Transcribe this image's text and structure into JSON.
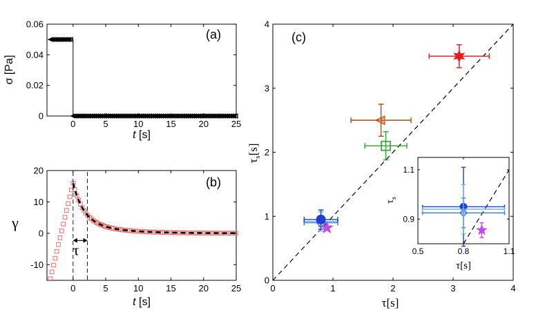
{
  "colors": {
    "axis": "#000000",
    "red": "#e41a1c",
    "red_marker": "#f06a6a",
    "orange_brown": "#b5470b",
    "orange": "#e07020",
    "green": "#2ca02c",
    "blue_dark": "#1f3fd0",
    "blue_mid": "#3a78e0",
    "blue_light": "#6ab4f0",
    "purple": "#c04be8",
    "black": "#000000"
  },
  "chart_data": [
    {
      "id": "a",
      "type": "line",
      "panel_label": "(a)",
      "xlabel_italic": "t",
      "xlabel_rest": " [s]",
      "ylabel": "σ [Pa]",
      "xlim": [
        -4,
        25
      ],
      "ylim": [
        0,
        0.06
      ],
      "xticks": [
        "0",
        "5",
        "10",
        "15",
        "20",
        "25"
      ],
      "xtick_values": [
        0,
        5,
        10,
        15,
        20,
        25
      ],
      "yticks": [
        "0",
        "0.02",
        "0.04",
        "0.06"
      ],
      "ytick_values": [
        0,
        0.02,
        0.04,
        0.06
      ],
      "series": [
        {
          "name": "stress",
          "x": [
            -3.5,
            0,
            0,
            25
          ],
          "y": [
            0.05,
            0.05,
            0,
            0
          ],
          "marker": "triangle-left"
        }
      ]
    },
    {
      "id": "b",
      "type": "scatter",
      "panel_label": "(b)",
      "xlabel_italic": "t",
      "xlabel_rest": " [s]",
      "ylabel": "γ",
      "tau_label": "τ",
      "xlim": [
        -4,
        25
      ],
      "ylim": [
        -15,
        20
      ],
      "xticks": [
        "0",
        "5",
        "10",
        "15",
        "20",
        "25"
      ],
      "xtick_values": [
        0,
        5,
        10,
        15,
        20,
        25
      ],
      "yticks": [
        "-10",
        "0",
        "10",
        "20"
      ],
      "ytick_values": [
        -10,
        0,
        10,
        20
      ],
      "tau_range": [
        0,
        2.2
      ],
      "series": [
        {
          "name": "strain (data)",
          "style": "square-markers",
          "peak_time": 0,
          "peak_value": 16,
          "start_time": -3.5,
          "start_value": -14.5
        },
        {
          "name": "fit",
          "style": "dashed",
          "from_time": 0,
          "to_time": 25
        }
      ]
    },
    {
      "id": "c",
      "type": "scatter",
      "panel_label": "(c)",
      "xlabel": "τ[s]",
      "ylabel_main": "τ",
      "ylabel_sub": "s",
      "ylabel_tail": "[s]",
      "xlim": [
        0,
        4
      ],
      "ylim": [
        0,
        4
      ],
      "xticks": [
        "0",
        "1",
        "2",
        "3",
        "4"
      ],
      "xtick_values": [
        0,
        1,
        2,
        3,
        4
      ],
      "yticks": [
        "0",
        "1",
        "2",
        "3",
        "4"
      ],
      "ytick_values": [
        0,
        1,
        2,
        3,
        4
      ],
      "diagonal": [
        [
          0,
          0
        ],
        [
          4,
          4
        ]
      ],
      "points": [
        {
          "name": "red-star",
          "x": 3.1,
          "y": 3.5,
          "xerr": 0.5,
          "yerr": 0.18,
          "marker": "hexagram",
          "color": "red"
        },
        {
          "name": "orange-triangle",
          "x": 1.8,
          "y": 2.5,
          "xerr": 0.5,
          "yerr": 0.25,
          "marker": "triangle-left",
          "color": "orange_brown"
        },
        {
          "name": "green-square",
          "x": 1.88,
          "y": 2.1,
          "xerr": 0.35,
          "yerr": 0.22,
          "marker": "square",
          "color": "green"
        },
        {
          "name": "blue-cluster",
          "x": 0.8,
          "y": 0.95,
          "xerr": 0.28,
          "yerr": 0.15,
          "marker": "circle",
          "color": "blue_dark"
        },
        {
          "name": "purple-star",
          "x": 0.9,
          "y": 0.82,
          "xerr": 0,
          "yerr": 0,
          "marker": "pentagram",
          "color": "purple"
        }
      ]
    },
    {
      "id": "c-inset",
      "type": "scatter",
      "xlabel": "τ[s]",
      "ylabel_main": "τ",
      "ylabel_sub": "s",
      "xlim": [
        0.5,
        1.1
      ],
      "ylim": [
        0.8,
        1.15
      ],
      "xticks": [
        "0.5",
        "0.8",
        "1.1"
      ],
      "xtick_values": [
        0.5,
        0.8,
        1.1
      ],
      "yticks": [
        "0.9",
        "1.1"
      ],
      "ytick_values": [
        0.9,
        1.1
      ],
      "diagonal": [
        [
          0.5,
          0.5
        ],
        [
          1.1,
          1.1
        ]
      ],
      "points": [
        {
          "name": "blue-circle",
          "x": 0.8,
          "y": 0.95,
          "xerr": 0.27,
          "yerr": 0.16,
          "marker": "circle",
          "color": "blue_dark"
        },
        {
          "name": "blue-diamond",
          "x": 0.8,
          "y": 0.925,
          "xerr": 0.27,
          "yerr": 0.06,
          "marker": "diamond",
          "color": "blue_mid"
        },
        {
          "name": "lightblue-bar",
          "x": 0.8,
          "y": 0.94,
          "xerr": 0.27,
          "yerr": 0.1,
          "marker": "none",
          "color": "blue_light"
        },
        {
          "name": "purple-star",
          "x": 0.92,
          "y": 0.855,
          "xerr": 0,
          "yerr": 0.03,
          "marker": "pentagram",
          "color": "purple"
        }
      ]
    }
  ]
}
